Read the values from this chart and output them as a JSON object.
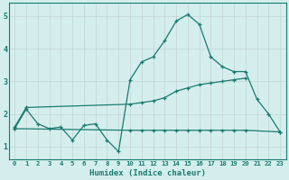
{
  "title": "",
  "xlabel": "Humidex (Indice chaleur)",
  "bg_color": "#d4eeee",
  "line_color": "#1a7a6e",
  "grid_color": "#c8d8d8",
  "xlim": [
    -0.5,
    23.5
  ],
  "ylim": [
    0.6,
    5.4
  ],
  "yticks": [
    1,
    2,
    3,
    4,
    5
  ],
  "xticks": [
    0,
    1,
    2,
    3,
    4,
    5,
    6,
    7,
    8,
    9,
    10,
    11,
    12,
    13,
    14,
    15,
    16,
    17,
    18,
    19,
    20,
    21,
    22,
    23
  ],
  "line1_x": [
    0,
    1,
    2,
    3,
    4,
    5,
    6,
    7,
    8,
    9,
    10,
    11,
    12,
    13,
    14,
    15,
    16,
    17,
    18,
    19,
    20,
    21,
    22,
    23
  ],
  "line1_y": [
    1.55,
    2.15,
    1.7,
    1.55,
    1.6,
    1.2,
    1.65,
    1.7,
    1.2,
    0.85,
    3.05,
    3.6,
    3.75,
    4.25,
    4.85,
    5.05,
    4.75,
    3.75,
    3.45,
    3.3,
    3.3,
    2.45,
    2.0,
    1.45
  ],
  "line2_x": [
    0,
    1,
    10,
    11,
    12,
    13,
    14,
    15,
    16,
    17,
    18,
    19,
    20
  ],
  "line2_y": [
    1.6,
    2.2,
    2.3,
    2.35,
    2.4,
    2.5,
    2.7,
    2.8,
    2.9,
    2.95,
    3.0,
    3.05,
    3.1
  ],
  "line3_x": [
    0,
    10,
    11,
    12,
    13,
    14,
    15,
    16,
    17,
    18,
    19,
    20,
    23
  ],
  "line3_y": [
    1.55,
    1.5,
    1.5,
    1.5,
    1.5,
    1.5,
    1.5,
    1.5,
    1.5,
    1.5,
    1.5,
    1.5,
    1.45
  ]
}
